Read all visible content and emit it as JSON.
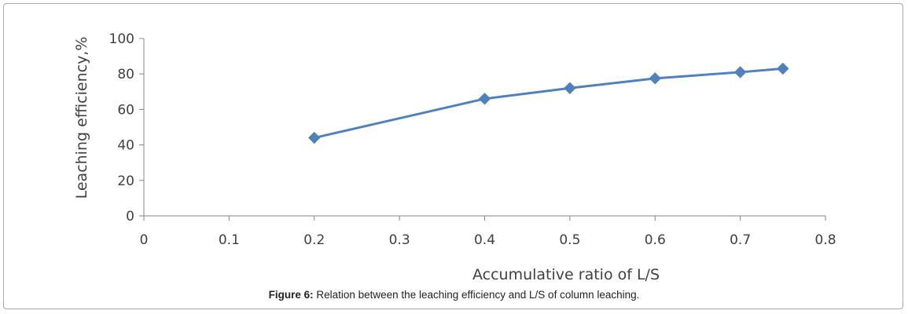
{
  "caption": {
    "label": "Figure 6:",
    "text": " Relation between the leaching efficiency and L/S of column leaching."
  },
  "chart_data": {
    "type": "line",
    "title": "",
    "xlabel": "Accumulative ratio of L/S",
    "ylabel": "Leaching efficiency,%",
    "xlim": [
      0,
      0.8
    ],
    "ylim": [
      0,
      100
    ],
    "x_ticks": [
      "0",
      "0.1",
      "0.2",
      "0.3",
      "0.4",
      "0.5",
      "0.6",
      "0.7",
      "0.8"
    ],
    "y_ticks": [
      "0",
      "20",
      "40",
      "60",
      "80",
      "100"
    ],
    "grid": false,
    "series": [
      {
        "color": "#4f81bd",
        "marker": "diamond",
        "x": [
          0.2,
          0.4,
          0.5,
          0.6,
          0.7,
          0.75
        ],
        "y": [
          44,
          66,
          72,
          77.5,
          81,
          83
        ]
      }
    ]
  }
}
